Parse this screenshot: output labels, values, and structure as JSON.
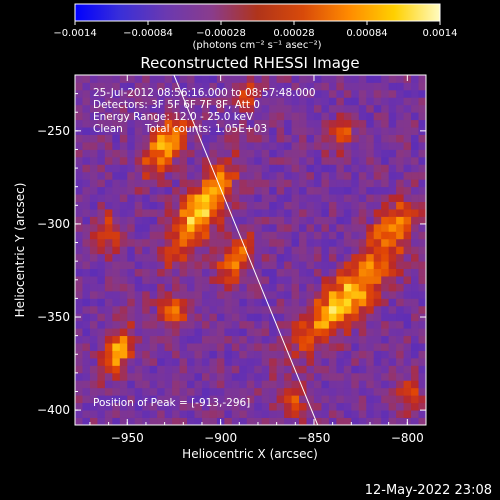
{
  "colorbar": {
    "ticks": [
      "-0.0014",
      "-0.00084",
      "-0.00028",
      "0.00028",
      "0.00084",
      "0.0014"
    ],
    "unit_label": "(photons cm⁻² s⁻¹ asec⁻²)",
    "colors": [
      "#0000ff",
      "#3a2fd8",
      "#6b39b0",
      "#8a3c8c",
      "#b0341a",
      "#d84a0a",
      "#ff8a00",
      "#ffd000",
      "#fffbc0"
    ]
  },
  "annotations": {
    "time_range": "25-Jul-2012 08:56:16.000 to 08:57:48.000",
    "detectors": "Detectors: 3F 5F 6F 7F 8F, Att 0",
    "energy": "Energy Range: 12.0 - 25.0 keV",
    "algorithm": "Clean",
    "counts": "Total counts: 1.05E+03",
    "peak": "Position of Peak = [-913,-296]"
  },
  "footer": {
    "timestamp": "12-May-2022 23:08"
  },
  "chart_data": {
    "type": "heatmap",
    "title": "Reconstructed RHESSI Image",
    "xlabel": "Heliocentric X (arcsec)",
    "ylabel": "Heliocentric Y (arcsec)",
    "xlim": [
      -978,
      -790
    ],
    "ylim": [
      -408,
      -220
    ],
    "xticks": [
      -950,
      -900,
      -850,
      -800
    ],
    "yticks": [
      -250,
      -300,
      -350,
      -400
    ],
    "xticklabels": [
      "−950",
      "−900",
      "−850",
      "−800"
    ],
    "yticklabels": [
      "−250",
      "−300",
      "−350",
      "−400"
    ],
    "clim": [
      -0.0014,
      0.0014
    ],
    "peak_position": [
      -913,
      -296
    ],
    "limb_line": [
      [
        -925,
        -220
      ],
      [
        -848,
        -408
      ]
    ],
    "sources": [
      {
        "x": -910,
        "y": -292,
        "sx": 7,
        "sy": 20,
        "angle": -32,
        "amp": 0.0014
      },
      {
        "x": -930,
        "y": -258,
        "sx": 6,
        "sy": 13,
        "angle": -32,
        "amp": 0.0011
      },
      {
        "x": -892,
        "y": -320,
        "sx": 6,
        "sy": 11,
        "angle": -32,
        "amp": 0.0009
      },
      {
        "x": -833,
        "y": -340,
        "sx": 8,
        "sy": 26,
        "angle": -45,
        "amp": 0.0013
      },
      {
        "x": -808,
        "y": -300,
        "sx": 6,
        "sy": 11,
        "angle": -35,
        "amp": 0.0009
      },
      {
        "x": -835,
        "y": -252,
        "sx": 5,
        "sy": 7,
        "angle": -30,
        "amp": 0.0007
      },
      {
        "x": -955,
        "y": -368,
        "sx": 5,
        "sy": 10,
        "angle": -20,
        "amp": 0.0011
      },
      {
        "x": -960,
        "y": -305,
        "sx": 5,
        "sy": 8,
        "angle": 0,
        "amp": 0.0007
      },
      {
        "x": -925,
        "y": -348,
        "sx": 6,
        "sy": 7,
        "angle": 0,
        "amp": 0.0008
      },
      {
        "x": -885,
        "y": -230,
        "sx": 5,
        "sy": 5,
        "angle": 0,
        "amp": 0.0006
      },
      {
        "x": -862,
        "y": -395,
        "sx": 6,
        "sy": 7,
        "angle": 0,
        "amp": 0.0007
      },
      {
        "x": -800,
        "y": -392,
        "sx": 5,
        "sy": 7,
        "angle": 0,
        "amp": 0.0007
      }
    ]
  }
}
